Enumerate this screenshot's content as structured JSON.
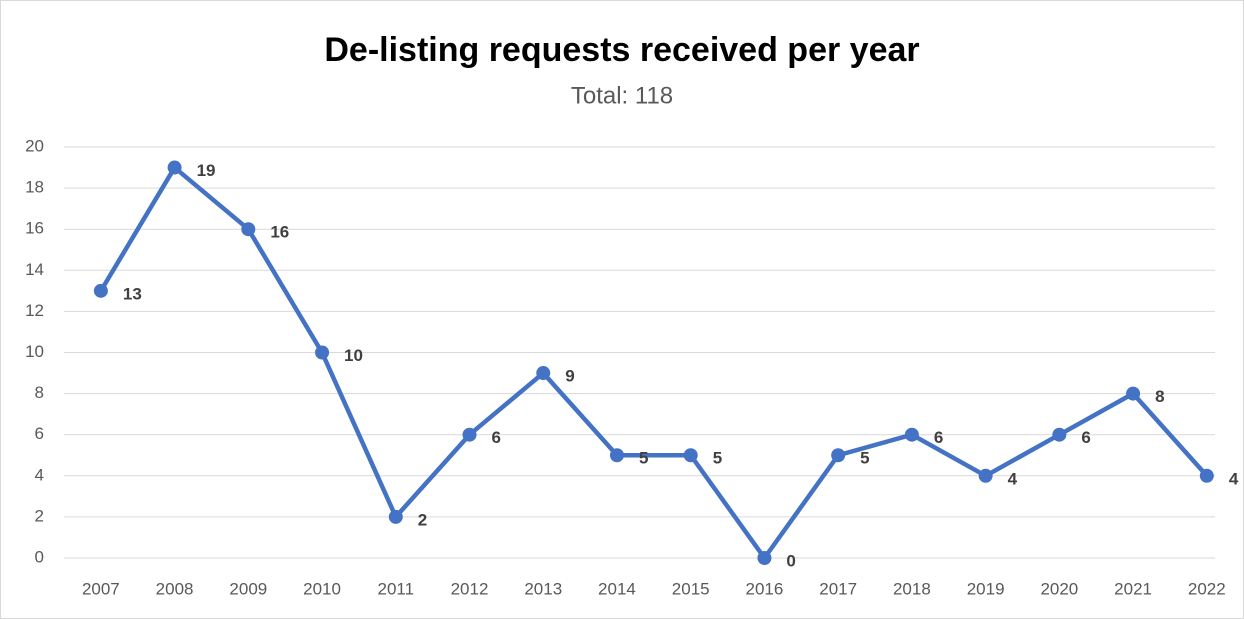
{
  "chart_data": {
    "type": "line",
    "title": "De-listing requests received per year",
    "subtitle": "Total: 118",
    "categories": [
      "2007",
      "2008",
      "2009",
      "2010",
      "2011",
      "2012",
      "2013",
      "2014",
      "2015",
      "2016",
      "2017",
      "2018",
      "2019",
      "2020",
      "2021",
      "2022"
    ],
    "values": [
      13,
      19,
      16,
      10,
      2,
      6,
      9,
      5,
      5,
      0,
      5,
      6,
      4,
      6,
      8,
      4
    ],
    "color": "#4472c4",
    "ylim": [
      0,
      20
    ],
    "yticks": [
      0,
      2,
      4,
      6,
      8,
      10,
      12,
      14,
      16,
      18,
      20
    ],
    "grid": true
  }
}
